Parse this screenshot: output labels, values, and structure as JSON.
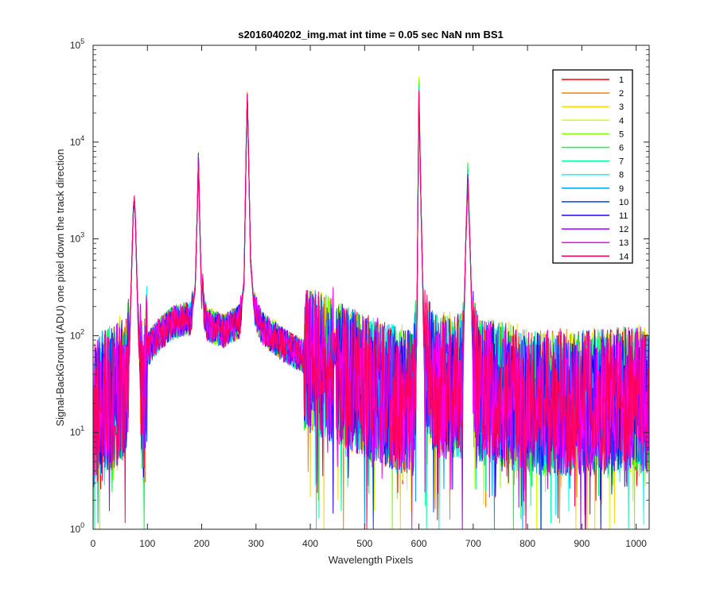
{
  "chart_data": {
    "type": "line",
    "title": "s2016040202_img.mat int time = 0.05 sec  NaN nm BS1",
    "xlabel": "Wavelength Pixels",
    "ylabel": "Signal-BackGround (ADU) one pixel down the track direction",
    "x_scale": "linear",
    "y_scale": "log",
    "xlim": [
      0,
      1024
    ],
    "ylim": [
      1,
      100000
    ],
    "x_ticks": [
      0,
      100,
      200,
      300,
      400,
      500,
      600,
      700,
      800,
      900,
      1000
    ],
    "y_ticks": [
      1,
      10,
      100,
      1000,
      10000,
      100000
    ],
    "y_tick_base": "10",
    "y_tick_exponents": [
      "0",
      "1",
      "2",
      "3",
      "4",
      "5"
    ],
    "grid": false,
    "legend_position": "top-right",
    "x": [
      0,
      20,
      40,
      60,
      66,
      70,
      74,
      76,
      78,
      82,
      86,
      92,
      100,
      120,
      150,
      180,
      188,
      192,
      194,
      196,
      200,
      202,
      204,
      210,
      240,
      270,
      278,
      282,
      284,
      286,
      290,
      296,
      310,
      350,
      400,
      440,
      445,
      450,
      500,
      560,
      590,
      596,
      600,
      604,
      610,
      630,
      680,
      686,
      690,
      694,
      700,
      710,
      760,
      800,
      900,
      1000,
      1024
    ],
    "peaks": [
      {
        "x": 76,
        "y": 2500
      },
      {
        "x": 194,
        "y": 7000
      },
      {
        "x": 284,
        "y": 30000
      },
      {
        "x": 600,
        "y": 32000
      },
      {
        "x": 690,
        "y": 4500
      }
    ],
    "series": [
      {
        "name": "1",
        "color": "#ff0000",
        "values": [
          14,
          20,
          24,
          30,
          60,
          300,
          1800,
          2600,
          1500,
          200,
          60,
          14,
          70,
          100,
          140,
          150,
          300,
          2000,
          7200,
          1900,
          200,
          400,
          180,
          130,
          110,
          140,
          350,
          9000,
          30000,
          9000,
          600,
          200,
          120,
          80,
          55,
          45,
          80,
          40,
          30,
          22,
          20,
          90,
          32000,
          2000,
          60,
          30,
          30,
          800,
          4800,
          900,
          50,
          28,
          24,
          20,
          20,
          22,
          20
        ]
      },
      {
        "name": "2",
        "color": "#ff7f00",
        "values": [
          15,
          21,
          25,
          31,
          62,
          320,
          1900,
          2650,
          1550,
          210,
          62,
          15,
          72,
          102,
          142,
          152,
          310,
          2100,
          7300,
          1950,
          210,
          410,
          182,
          132,
          112,
          142,
          360,
          9200,
          30500,
          9100,
          610,
          205,
          122,
          82,
          56,
          46,
          82,
          41,
          31,
          23,
          21,
          92,
          33000,
          2050,
          62,
          31,
          31,
          820,
          4900,
          920,
          52,
          29,
          25,
          21,
          21,
          23,
          21
        ]
      },
      {
        "name": "3",
        "color": "#ffd700",
        "values": [
          16,
          22,
          26,
          32,
          64,
          330,
          1950,
          2700,
          1600,
          215,
          64,
          16,
          74,
          104,
          144,
          154,
          320,
          2150,
          7400,
          2000,
          215,
          420,
          184,
          134,
          114,
          144,
          370,
          9300,
          31000,
          9200,
          620,
          210,
          124,
          84,
          57,
          47,
          84,
          42,
          32,
          24,
          22,
          94,
          45000,
          2100,
          64,
          32,
          32,
          840,
          5500,
          940,
          54,
          30,
          26,
          22,
          22,
          24,
          22
        ]
      },
      {
        "name": "4",
        "color": "#d8ff00",
        "values": [
          14,
          20,
          24,
          30,
          60,
          310,
          1850,
          2550,
          1500,
          205,
          60,
          14,
          70,
          100,
          140,
          150,
          305,
          2050,
          7250,
          1900,
          205,
          400,
          180,
          130,
          110,
          140,
          355,
          9100,
          30200,
          9050,
          605,
          200,
          120,
          80,
          55,
          45,
          80,
          40,
          30,
          22,
          20,
          90,
          46000,
          2000,
          60,
          30,
          30,
          810,
          5200,
          910,
          50,
          28,
          24,
          20,
          20,
          22,
          20
        ]
      },
      {
        "name": "5",
        "color": "#80ff00",
        "values": [
          15,
          21,
          25,
          31,
          61,
          315,
          1880,
          2600,
          1520,
          208,
          61,
          15,
          71,
          101,
          141,
          151,
          308,
          2080,
          7280,
          1920,
          208,
          405,
          181,
          131,
          111,
          141,
          358,
          9150,
          30300,
          9080,
          608,
          202,
          121,
          81,
          55,
          45,
          81,
          40,
          30,
          22,
          20,
          91,
          44000,
          2020,
          61,
          30,
          30,
          815,
          5700,
          915,
          51,
          28,
          24,
          20,
          20,
          22,
          20
        ]
      },
      {
        "name": "6",
        "color": "#00ff40",
        "values": [
          14,
          20,
          24,
          30,
          60,
          312,
          1860,
          2580,
          1510,
          206,
          60,
          14,
          70,
          100,
          140,
          150,
          306,
          2060,
          7260,
          1910,
          206,
          402,
          180,
          130,
          110,
          140,
          356,
          9120,
          30250,
          9060,
          606,
          201,
          120,
          80,
          55,
          45,
          80,
          40,
          30,
          22,
          20,
          90,
          40000,
          2010,
          60,
          30,
          30,
          812,
          5600,
          912,
          50,
          28,
          24,
          20,
          20,
          22,
          20
        ]
      },
      {
        "name": "7",
        "color": "#00ff9f",
        "values": [
          15,
          21,
          25,
          31,
          61,
          318,
          1890,
          2620,
          1530,
          209,
          61,
          15,
          71,
          101,
          141,
          151,
          309,
          2090,
          7290,
          1930,
          209,
          406,
          181,
          131,
          111,
          141,
          359,
          9160,
          30350,
          9090,
          609,
          203,
          121,
          81,
          56,
          46,
          81,
          41,
          31,
          23,
          21,
          91,
          38000,
          2030,
          61,
          31,
          31,
          818,
          5000,
          918,
          51,
          29,
          25,
          21,
          21,
          23,
          21
        ]
      },
      {
        "name": "8",
        "color": "#00ffff",
        "values": [
          14,
          20,
          24,
          30,
          60,
          311,
          1855,
          2560,
          1505,
          205,
          60,
          14,
          70,
          100,
          140,
          150,
          305,
          2055,
          7255,
          1905,
          205,
          401,
          180,
          130,
          110,
          140,
          355,
          9110,
          30220,
          9055,
          605,
          200,
          120,
          80,
          55,
          45,
          80,
          40,
          30,
          22,
          20,
          90,
          36000,
          2005,
          60,
          30,
          30,
          811,
          4700,
          911,
          50,
          28,
          24,
          20,
          20,
          22,
          20
        ]
      },
      {
        "name": "9",
        "color": "#009fff",
        "values": [
          15,
          21,
          25,
          31,
          61,
          316,
          1885,
          2610,
          1525,
          208,
          61,
          15,
          71,
          101,
          141,
          151,
          308,
          2085,
          7285,
          1925,
          208,
          404,
          181,
          131,
          111,
          141,
          357,
          9140,
          30280,
          9075,
          607,
          202,
          121,
          81,
          55,
          45,
          81,
          40,
          30,
          22,
          20,
          91,
          35000,
          2025,
          61,
          30,
          30,
          816,
          4600,
          916,
          51,
          28,
          24,
          20,
          20,
          22,
          20
        ]
      },
      {
        "name": "10",
        "color": "#0040ff",
        "values": [
          14,
          20,
          24,
          30,
          60,
          313,
          1865,
          2590,
          1515,
          206,
          60,
          14,
          70,
          100,
          140,
          150,
          306,
          2065,
          7265,
          1915,
          206,
          403,
          180,
          130,
          110,
          140,
          356,
          9125,
          30260,
          9065,
          606,
          201,
          120,
          80,
          55,
          45,
          80,
          40,
          30,
          22,
          20,
          90,
          34000,
          2015,
          60,
          30,
          30,
          813,
          4400,
          913,
          50,
          28,
          24,
          20,
          20,
          22,
          20
        ]
      },
      {
        "name": "11",
        "color": "#2000ff",
        "values": [
          15,
          21,
          25,
          31,
          61,
          317,
          1888,
          2615,
          1528,
          208,
          61,
          15,
          71,
          101,
          141,
          151,
          308,
          2088,
          7288,
          1928,
          208,
          405,
          181,
          131,
          111,
          141,
          358,
          9145,
          30290,
          9080,
          608,
          202,
          121,
          81,
          55,
          45,
          81,
          40,
          30,
          22,
          20,
          91,
          33000,
          2028,
          61,
          30,
          30,
          817,
          4300,
          917,
          51,
          28,
          24,
          20,
          20,
          22,
          20
        ]
      },
      {
        "name": "12",
        "color": "#a000ff",
        "values": [
          14,
          20,
          24,
          30,
          60,
          314,
          1870,
          2595,
          1518,
          207,
          60,
          14,
          70,
          100,
          140,
          150,
          307,
          2070,
          7270,
          1918,
          207,
          403,
          180,
          130,
          110,
          140,
          357,
          9130,
          30270,
          9070,
          607,
          201,
          120,
          80,
          55,
          45,
          80,
          40,
          30,
          22,
          20,
          90,
          32500,
          2018,
          60,
          30,
          30,
          814,
          4200,
          914,
          50,
          28,
          24,
          20,
          20,
          22,
          20
        ]
      },
      {
        "name": "13",
        "color": "#ff00ff",
        "values": [
          15,
          21,
          25,
          31,
          61,
          319,
          1892,
          2625,
          1532,
          209,
          61,
          15,
          71,
          101,
          141,
          151,
          309,
          2092,
          7292,
          1932,
          209,
          407,
          181,
          131,
          111,
          141,
          359,
          9165,
          30360,
          9095,
          609,
          203,
          121,
          81,
          56,
          46,
          81,
          41,
          31,
          23,
          21,
          91,
          32000,
          2032,
          61,
          31,
          31,
          819,
          4100,
          919,
          51,
          29,
          25,
          21,
          21,
          23,
          21
        ]
      },
      {
        "name": "14",
        "color": "#ff0060",
        "values": [
          14,
          20,
          24,
          30,
          60,
          312,
          1862,
          2585,
          1512,
          206,
          60,
          14,
          70,
          100,
          140,
          150,
          306,
          2062,
          7262,
          1912,
          206,
          402,
          180,
          130,
          110,
          140,
          356,
          9122,
          30255,
          9062,
          606,
          201,
          120,
          80,
          55,
          45,
          80,
          40,
          30,
          22,
          20,
          90,
          31000,
          2012,
          60,
          30,
          30,
          812,
          4000,
          912,
          50,
          28,
          24,
          20,
          20,
          22,
          20
        ]
      }
    ]
  }
}
